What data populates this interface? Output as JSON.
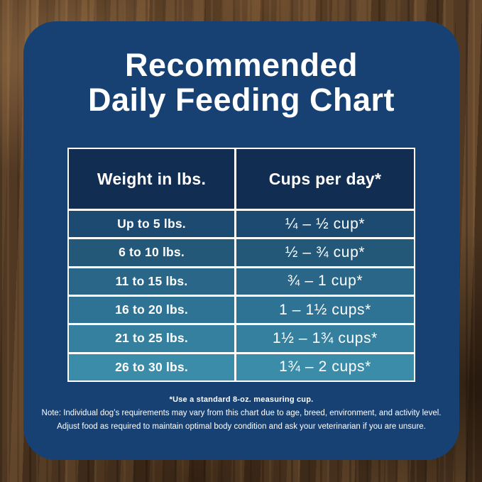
{
  "title": {
    "line1": "Recommended",
    "line2": "Daily Feeding Chart"
  },
  "table": {
    "col1_header": "Weight in lbs.",
    "col2_header": "Cups per day*",
    "header_bg": "#112e52",
    "border_color": "#ffffff",
    "rows": [
      {
        "weight": "Up to 5 lbs.",
        "cups": "¼ – ½ cup*",
        "color": "#1d4a70"
      },
      {
        "weight": "6 to 10 lbs.",
        "cups": "½ – ¾ cup*",
        "color": "#235879"
      },
      {
        "weight": "11 to 15 lbs.",
        "cups": "¾ – 1 cup*",
        "color": "#296687"
      },
      {
        "weight": "16 to 20 lbs.",
        "cups": "1 – 1½ cups*",
        "color": "#2f7394"
      },
      {
        "weight": "21 to 25 lbs.",
        "cups": "1½ – 1¾ cups*",
        "color": "#35809f"
      },
      {
        "weight": "26 to 30 lbs.",
        "cups": "1¾ – 2 cups*",
        "color": "#3b8ca9"
      }
    ]
  },
  "notes": {
    "measuring_cup": "*Use a standard 8-oz. measuring cup.",
    "line1": "Note: Individual dog’s requirements may vary from this chart due to age, breed, environment, and activity level.",
    "line2": "Adjust food as required to maintain optimal body condition and ask your veterinarian if you are unsure."
  },
  "colors": {
    "card_bg": "#174173",
    "text": "#ffffff"
  },
  "chart_data": {
    "type": "table",
    "title": "Recommended Daily Feeding Chart",
    "columns": [
      "Weight in lbs.",
      "Cups per day*"
    ],
    "rows": [
      [
        "Up to 5 lbs.",
        "¼ – ½ cup*"
      ],
      [
        "6 to 10 lbs.",
        "½ – ¾ cup*"
      ],
      [
        "11 to 15 lbs.",
        "¾ – 1 cup*"
      ],
      [
        "16 to 20 lbs.",
        "1 – 1½ cups*"
      ],
      [
        "21 to 25 lbs.",
        "1½ – 1¾ cups*"
      ],
      [
        "26 to 30 lbs.",
        "1¾ – 2 cups*"
      ]
    ],
    "footnote": "*Use a standard 8-oz. measuring cup."
  }
}
